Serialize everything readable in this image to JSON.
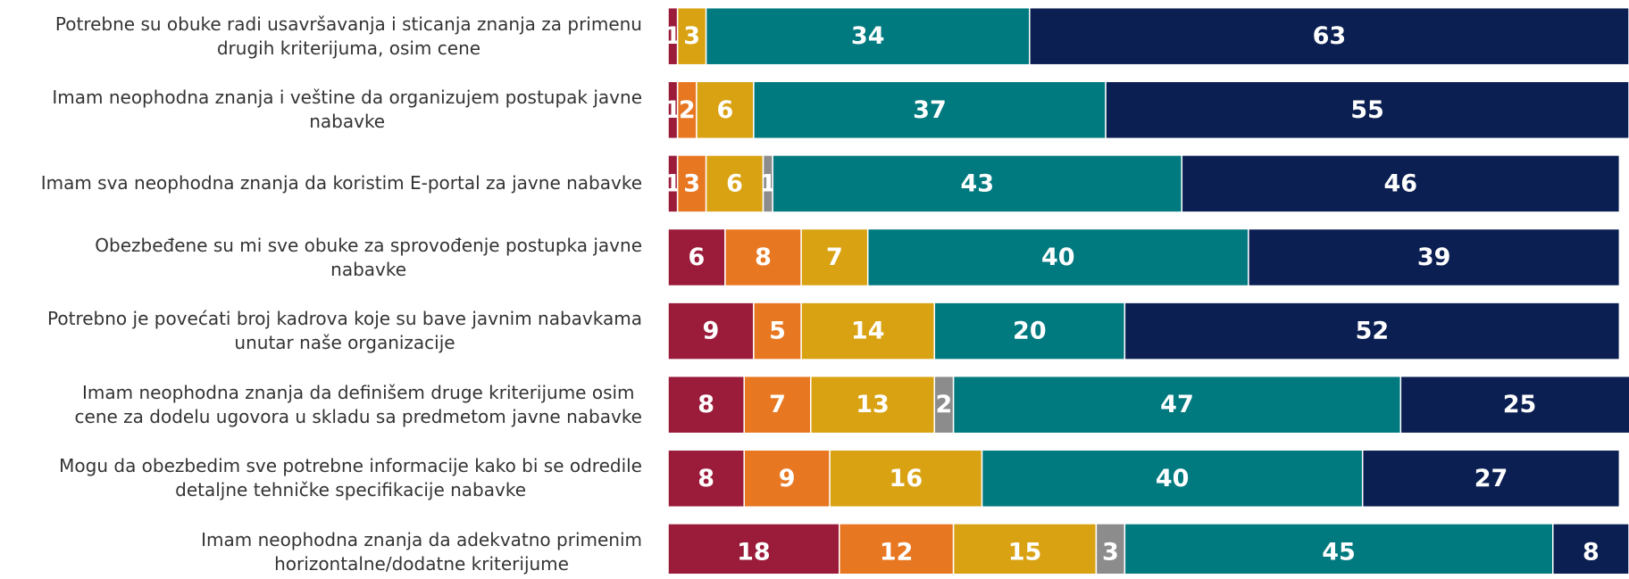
{
  "chart_data": {
    "type": "stacked_bar_horizontal",
    "categories": [
      [
        "Potrebne su obuke radi usavršavanja i sticanja znanja za  primenu",
        "drugih kriterijuma, osim cene"
      ],
      [
        "Imam neophodna znanja i veštine da organizujem postupak javne",
        "nabavke"
      ],
      [
        "Imam sva neophodna znanja da koristim E-portal za javne nabavke"
      ],
      [
        "Obezbeđene su mi sve obuke za sprovođenje postupka javne",
        "nabavke"
      ],
      [
        "Potrebno je povećati broj kadrova koje su bave javnim nabavkama",
        "unutar naše organizacije"
      ],
      [
        "Imam neophodna znanja da definišem druge kriterijume osim",
        "cene za dodelu ugovora u skladu sa predmetom javne nabavke"
      ],
      [
        "Mogu da obezbedim sve potrebne informacije kako bi se odredile",
        "detaljne tehničke specifikacije nabavke"
      ],
      [
        "Imam neophodna znanja da adekvatno primenim",
        "horizontalne/dodatne kriterijume"
      ]
    ],
    "series": [
      {
        "color": "#9b1b3a",
        "values": [
          1,
          1,
          1,
          6,
          9,
          8,
          8,
          18
        ]
      },
      {
        "color": "#e87722",
        "values": [
          null,
          2,
          3,
          8,
          5,
          7,
          9,
          12
        ]
      },
      {
        "color": "#d9a213",
        "values": [
          3,
          6,
          6,
          7,
          14,
          13,
          16,
          15
        ]
      },
      {
        "color": "#8c8c8c",
        "values": [
          null,
          null,
          1,
          null,
          null,
          2,
          null,
          3
        ]
      },
      {
        "color": "#00797f",
        "values": [
          34,
          37,
          43,
          40,
          20,
          47,
          40,
          45
        ]
      },
      {
        "color": "#0b1f52",
        "values": [
          63,
          55,
          46,
          39,
          52,
          25,
          27,
          8
        ]
      }
    ],
    "xlim": [
      0,
      101
    ]
  }
}
